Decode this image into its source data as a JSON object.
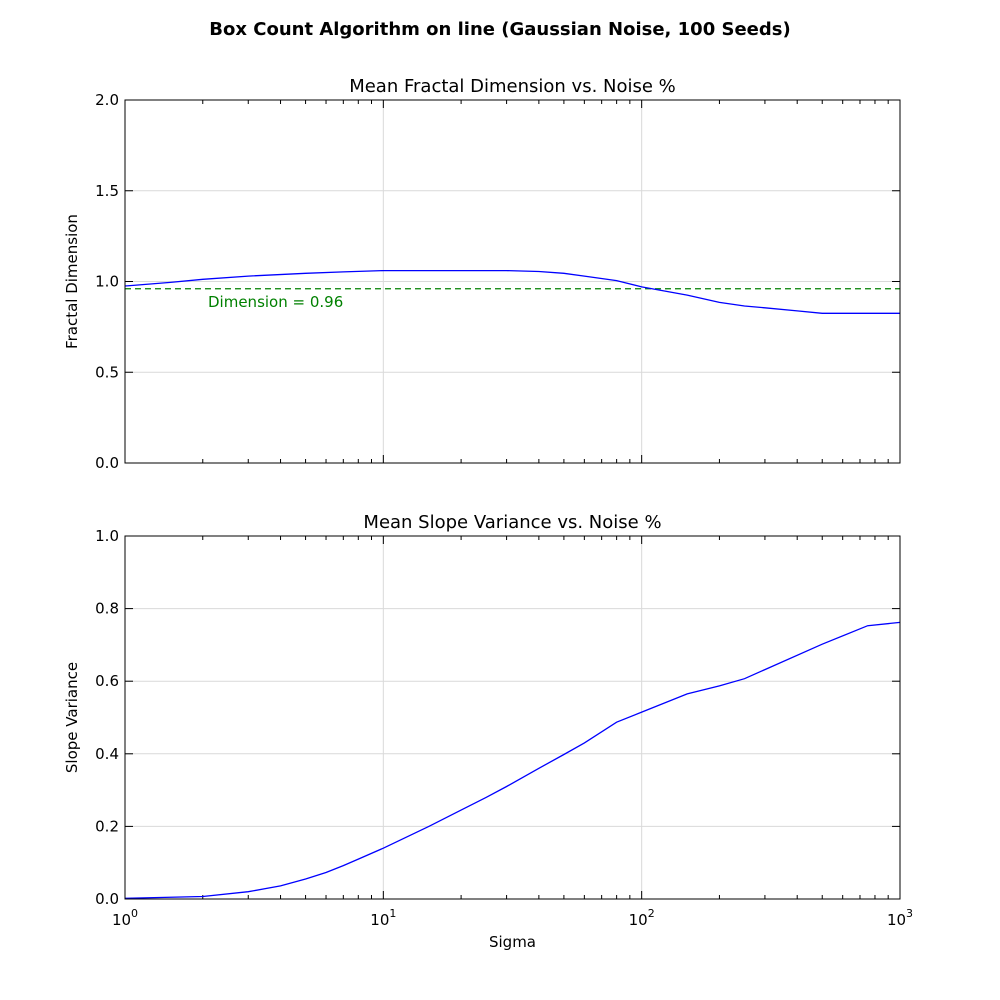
{
  "figure": {
    "suptitle": "Box Count Algorithm on line (Gaussian Noise, 100 Seeds)"
  },
  "chart_data": [
    {
      "type": "line",
      "title": "Mean Fractal Dimension vs. Noise %",
      "xlabel": "",
      "ylabel": "Fractal Dimension",
      "xscale": "log",
      "xlim": [
        1,
        1000
      ],
      "ylim": [
        0,
        2
      ],
      "yticks": [
        "0.0",
        "0.5",
        "1.0",
        "1.5",
        "2.0"
      ],
      "grid": true,
      "series": [
        {
          "color": "#0000ff",
          "x": [
            1,
            1.5,
            2,
            3,
            5,
            7,
            10,
            15,
            20,
            30,
            40,
            50,
            60,
            80,
            100,
            150,
            200,
            250,
            300,
            400,
            500,
            600,
            700,
            800,
            1000
          ],
          "y": [
            0.975,
            0.995,
            1.012,
            1.03,
            1.045,
            1.053,
            1.06,
            1.06,
            1.06,
            1.06,
            1.055,
            1.045,
            1.03,
            1.005,
            0.97,
            0.925,
            0.885,
            0.865,
            0.855,
            0.838,
            0.825,
            0.825,
            0.825,
            0.825,
            0.825
          ]
        }
      ],
      "reference_line": {
        "y": 0.96,
        "color": "#008000",
        "style": "dashed",
        "label": "Dimension = 0.96"
      }
    },
    {
      "type": "line",
      "title": "Mean Slope Variance vs. Noise %",
      "xlabel": "Sigma",
      "ylabel": "Slope Variance",
      "xscale": "log",
      "xlim": [
        1,
        1000
      ],
      "ylim": [
        0,
        1
      ],
      "yticks": [
        "0.0",
        "0.2",
        "0.4",
        "0.6",
        "0.8",
        "1.0"
      ],
      "xticks": [
        "10^0",
        "10^1",
        "10^2",
        "10^3"
      ],
      "grid": true,
      "series": [
        {
          "color": "#0000ff",
          "x": [
            1,
            2,
            3,
            4,
            5,
            6,
            7,
            8,
            10,
            15,
            20,
            25,
            30,
            40,
            50,
            60,
            80,
            100,
            150,
            200,
            250,
            300,
            500,
            750,
            1000
          ],
          "y": [
            0.002,
            0.007,
            0.02,
            0.036,
            0.055,
            0.073,
            0.092,
            0.11,
            0.14,
            0.2,
            0.245,
            0.28,
            0.31,
            0.36,
            0.398,
            0.43,
            0.487,
            0.515,
            0.565,
            0.587,
            0.607,
            0.632,
            0.702,
            0.753,
            0.762
          ]
        }
      ]
    }
  ]
}
